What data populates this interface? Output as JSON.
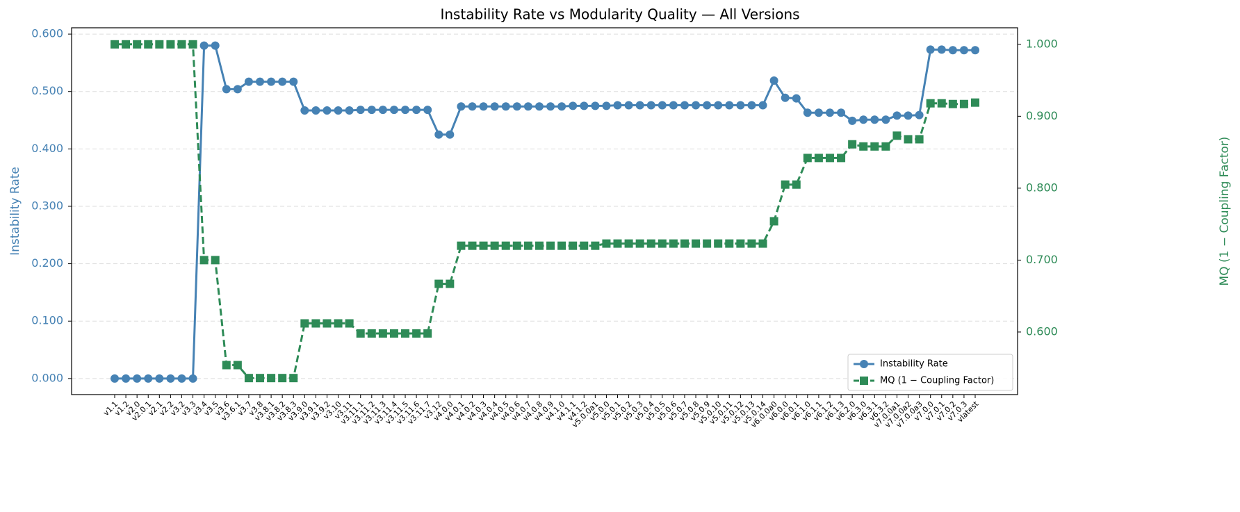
{
  "chart_data": {
    "type": "line",
    "title": "Instability Rate vs Modularity Quality — All Versions",
    "ylabel": "Instability Rate",
    "y2label": "MQ (1 − Coupling Factor)",
    "categories": [
      "v1.1",
      "v1.2",
      "v2.0",
      "v2.0.1",
      "v2.1",
      "v2.2",
      "v3.2",
      "v3.3",
      "v3.4",
      "v3.5",
      "v3.6",
      "v3.6.1",
      "v3.7",
      "v3.8",
      "v3.8.1",
      "v3.8.2",
      "v3.8.3",
      "v3.9.0",
      "v3.9.1",
      "v3.9.2",
      "v3.10",
      "v3.11",
      "v3.11.1",
      "v3.11.2",
      "v3.11.3",
      "v3.11.4",
      "v3.11.5",
      "v3.11.6",
      "v3.11.7",
      "v3.12",
      "v4.0.0",
      "v4.0.1",
      "v4.0.2",
      "v4.0.3",
      "v4.0.4",
      "v4.0.5",
      "v4.0.6",
      "v4.0.7",
      "v4.0.8",
      "v4.0.9",
      "v4.1.0",
      "v4.1.1",
      "v4.1.2",
      "v5.0.0a1",
      "v5.0.0",
      "v5.0.1",
      "v5.0.2",
      "v5.0.3",
      "v5.0.4",
      "v5.0.5",
      "v5.0.6",
      "v5.0.7",
      "v5.0.8",
      "v5.0.9",
      "v5.0.10",
      "v5.0.11",
      "v5.0.12",
      "v5.0.13",
      "v5.0.14",
      "v6.0.0a0",
      "v6.0.0",
      "v6.0.1",
      "v6.1.0",
      "v6.1.1",
      "v6.1.2",
      "v6.1.3",
      "v6.2.0",
      "v6.3.0",
      "v6.3.1",
      "v6.3.2",
      "v7.0.0a1",
      "v7.0.0a2",
      "v7.0.0a3",
      "v7.0.0",
      "v7.0.1",
      "v7.0.2",
      "v7.0.3",
      "vlatest"
    ],
    "series": [
      {
        "name": "Instability Rate",
        "color": "#4682b4",
        "marker": "circle",
        "dash": false,
        "values": [
          0,
          0,
          0,
          0,
          0,
          0,
          0,
          0,
          0.58,
          0.58,
          0.504,
          0.504,
          0.517,
          0.517,
          0.517,
          0.517,
          0.517,
          0.467,
          0.467,
          0.467,
          0.467,
          0.467,
          0.468,
          0.468,
          0.468,
          0.468,
          0.468,
          0.468,
          0.468,
          0.425,
          0.425,
          0.474,
          0.474,
          0.474,
          0.474,
          0.474,
          0.474,
          0.474,
          0.474,
          0.474,
          0.474,
          0.475,
          0.475,
          0.475,
          0.475,
          0.476,
          0.476,
          0.476,
          0.476,
          0.476,
          0.476,
          0.476,
          0.476,
          0.476,
          0.476,
          0.476,
          0.476,
          0.476,
          0.476,
          0.519,
          0.489,
          0.488,
          0.463,
          0.463,
          0.463,
          0.463,
          0.449,
          0.451,
          0.451,
          0.451,
          0.458,
          0.458,
          0.459,
          0.573,
          0.573,
          0.572,
          0.572,
          0.572
        ]
      },
      {
        "name": "MQ (1 − Coupling Factor)",
        "color": "#2e8b57",
        "marker": "square",
        "dash": true,
        "axis": "y2",
        "values": [
          1,
          1,
          1,
          1,
          1,
          1,
          1,
          1,
          0.7,
          0.7,
          0.554,
          0.554,
          0.536,
          0.536,
          0.536,
          0.536,
          0.536,
          0.612,
          0.612,
          0.612,
          0.612,
          0.612,
          0.598,
          0.598,
          0.598,
          0.598,
          0.598,
          0.598,
          0.598,
          0.667,
          0.667,
          0.72,
          0.72,
          0.72,
          0.72,
          0.72,
          0.72,
          0.72,
          0.72,
          0.72,
          0.72,
          0.72,
          0.72,
          0.72,
          0.723,
          0.723,
          0.723,
          0.723,
          0.723,
          0.723,
          0.723,
          0.723,
          0.723,
          0.723,
          0.723,
          0.723,
          0.723,
          0.723,
          0.723,
          0.754,
          0.805,
          0.805,
          0.842,
          0.842,
          0.842,
          0.842,
          0.861,
          0.858,
          0.858,
          0.858,
          0.873,
          0.868,
          0.868,
          0.918,
          0.918,
          0.917,
          0.917,
          0.919
        ]
      }
    ],
    "ylim": [
      -0.028,
      0.611
    ],
    "yticks": [
      {
        "value": 0,
        "label": "0.000"
      },
      {
        "value": 0.1,
        "label": "0.100"
      },
      {
        "value": 0.2,
        "label": "0.200"
      },
      {
        "value": 0.3,
        "label": "0.300"
      },
      {
        "value": 0.4,
        "label": "0.400"
      },
      {
        "value": 0.5,
        "label": "0.500"
      },
      {
        "value": 0.6,
        "label": "0.600"
      }
    ],
    "y2lim": [
      0.513,
      1.023
    ],
    "y2ticks": [
      {
        "value": 0.6,
        "label": "0.600"
      },
      {
        "value": 0.7,
        "label": "0.700"
      },
      {
        "value": 0.8,
        "label": "0.800"
      },
      {
        "value": 0.9,
        "label": "0.900"
      },
      {
        "value": 1,
        "label": "1.000"
      }
    ],
    "grid": true,
    "legend": "lower right"
  }
}
